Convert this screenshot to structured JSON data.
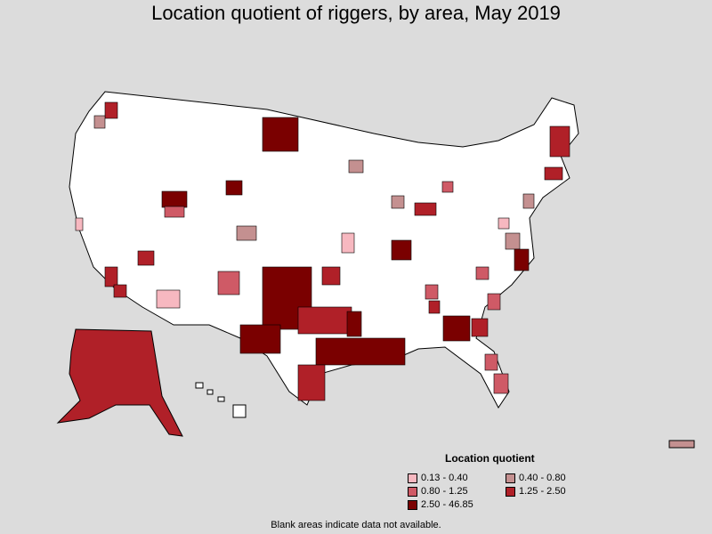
{
  "title": "Location quotient of riggers, by area, May 2019",
  "legend": {
    "title": "Location quotient",
    "items": [
      {
        "label": "0.13 - 0.40",
        "color": "#f7b8c0"
      },
      {
        "label": "0.40 - 0.80",
        "color": "#c49090"
      },
      {
        "label": "0.80 - 1.25",
        "color": "#cf5a66"
      },
      {
        "label": "1.25 - 2.50",
        "color": "#b02028"
      },
      {
        "label": "2.50 - 46.85",
        "color": "#7a0000"
      }
    ]
  },
  "note": "Blank areas indicate data not available."
}
